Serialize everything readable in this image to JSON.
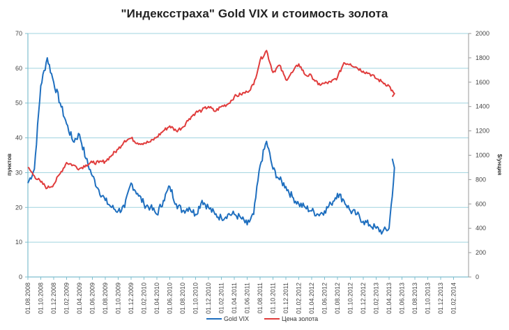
{
  "chart_data": {
    "type": "line",
    "title": "\"Индексстраха\" Gold VIX и стоимость золота",
    "xlabel": "",
    "ylabel": "пунктов",
    "y2label": "$/унция",
    "ylim": [
      0,
      70
    ],
    "y2lim": [
      0,
      2000
    ],
    "yticks": [
      0,
      10,
      20,
      30,
      40,
      50,
      60,
      70
    ],
    "y2ticks": [
      0,
      200,
      400,
      600,
      800,
      1000,
      1200,
      1400,
      1600,
      1800,
      2000
    ],
    "grid": true,
    "legend_position": "bottom",
    "categories": [
      "01.08.2008",
      "01.10.2008",
      "01.12.2008",
      "01.02.2009",
      "01.04.2009",
      "01.06.2009",
      "01.08.2009",
      "01.10.2009",
      "01.12.2009",
      "01.02.2010",
      "01.04.2010",
      "01.06.2010",
      "01.08.2010",
      "01.10.2010",
      "01.12.2010",
      "01.02.2011",
      "01.04.2011",
      "01.06.2011",
      "01.08.2011",
      "01.10.2011",
      "01.12.2011",
      "01.02.2012",
      "01.04.2012",
      "01.06.2012",
      "01.08.2012",
      "01.10.2012",
      "01.12.2012",
      "01.02.2013",
      "01.04.2013",
      "01.06.2013",
      "01.08.2013",
      "01.10.2013",
      "01.12.2013",
      "01.02.2014"
    ],
    "x_monthly": [
      "2008-08",
      "2008-09",
      "2008-10",
      "2008-11",
      "2008-12",
      "2009-01",
      "2009-02",
      "2009-03",
      "2009-04",
      "2009-05",
      "2009-06",
      "2009-07",
      "2009-08",
      "2009-09",
      "2009-10",
      "2009-11",
      "2009-12",
      "2010-01",
      "2010-02",
      "2010-03",
      "2010-04",
      "2010-05",
      "2010-06",
      "2010-07",
      "2010-08",
      "2010-09",
      "2010-10",
      "2010-11",
      "2010-12",
      "2011-01",
      "2011-02",
      "2011-03",
      "2011-04",
      "2011-05",
      "2011-06",
      "2011-07",
      "2011-08",
      "2011-09",
      "2011-10",
      "2011-11",
      "2011-12",
      "2012-01",
      "2012-02",
      "2012-03",
      "2012-04",
      "2012-05",
      "2012-06",
      "2012-07",
      "2012-08",
      "2012-09",
      "2012-10",
      "2012-11",
      "2012-12",
      "2013-01",
      "2013-02",
      "2013-03",
      "2013-04",
      "2013-04b"
    ],
    "series": [
      {
        "name": "Gold VIX",
        "axis": "left",
        "color": "#1f6fbf",
        "values": [
          27,
          31,
          55,
          63,
          56,
          50,
          44,
          39,
          41,
          34,
          29,
          25,
          22,
          20,
          19,
          20,
          27,
          24,
          21,
          20,
          18,
          22,
          26,
          21,
          19,
          20,
          18,
          22,
          20,
          18,
          17,
          18,
          18,
          17,
          15,
          18,
          32,
          39,
          31,
          28,
          26,
          23,
          21,
          20,
          19,
          18,
          19,
          21,
          24,
          22,
          19,
          18,
          16,
          15,
          14,
          13,
          14,
          34
        ]
      },
      {
        "name": "Цена золота",
        "axis": "right",
        "color": "#e03c3c",
        "values": [
          900,
          830,
          780,
          730,
          760,
          850,
          940,
          920,
          890,
          920,
          940,
          940,
          950,
          1000,
          1050,
          1120,
          1140,
          1100,
          1100,
          1110,
          1150,
          1200,
          1240,
          1200,
          1230,
          1300,
          1350,
          1370,
          1400,
          1360,
          1400,
          1420,
          1480,
          1500,
          1520,
          1580,
          1780,
          1860,
          1680,
          1740,
          1620,
          1680,
          1750,
          1660,
          1650,
          1580,
          1590,
          1600,
          1640,
          1760,
          1750,
          1720,
          1690,
          1670,
          1630,
          1600,
          1570,
          1480
        ]
      }
    ]
  },
  "header": {
    "title": "\"Индексстраха\" Gold VIX и стоимость золота"
  },
  "axes": {
    "left_title": "пунктов",
    "right_title": "$/унция",
    "left_ticks": [
      "0",
      "10",
      "20",
      "30",
      "40",
      "50",
      "60",
      "70"
    ],
    "right_ticks": [
      "0",
      "200",
      "400",
      "600",
      "800",
      "1000",
      "1200",
      "1400",
      "1600",
      "1800",
      "2000"
    ]
  },
  "legend": {
    "items": [
      {
        "label": "Gold VIX",
        "color": "#1f6fbf"
      },
      {
        "label": "Цена золота",
        "color": "#e03c3c"
      }
    ]
  },
  "colors": {
    "gridline": "#9fd3df",
    "axis": "#7fbfcf"
  }
}
